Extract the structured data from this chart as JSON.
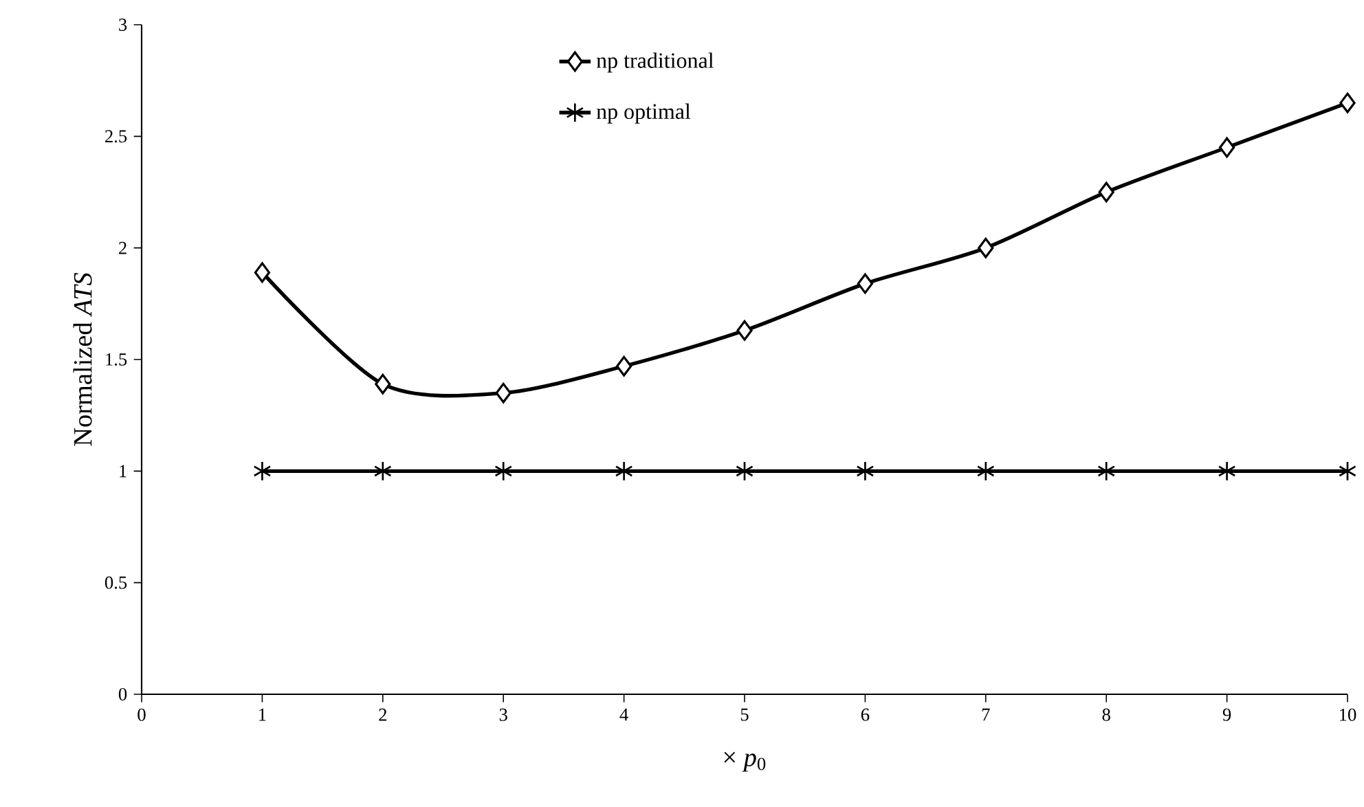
{
  "chart_data": {
    "type": "line",
    "xlabel": "× *p*$_{0}$",
    "ylabel": "Normalized *ATS*",
    "x": [
      1,
      2,
      3,
      4,
      5,
      6,
      7,
      8,
      9,
      10
    ],
    "series": [
      {
        "name": "np traditional",
        "color": "#000000",
        "marker": "diamond",
        "values": [
          1.89,
          1.39,
          1.35,
          1.47,
          1.63,
          1.84,
          2.0,
          2.25,
          2.45,
          2.65
        ]
      },
      {
        "name": "np optimal",
        "color": "#000000",
        "marker": "cross",
        "values": [
          1,
          1,
          1,
          1,
          1,
          1,
          1,
          1,
          1,
          1
        ]
      }
    ],
    "xlim": [
      0,
      10
    ],
    "xticks": [
      0,
      1,
      2,
      3,
      4,
      5,
      6,
      7,
      8,
      9,
      10
    ],
    "ylim": [
      0,
      3
    ],
    "yticks": [
      0,
      0.5,
      1,
      1.5,
      2,
      2.5,
      3
    ],
    "grid": false,
    "legend": "top"
  }
}
